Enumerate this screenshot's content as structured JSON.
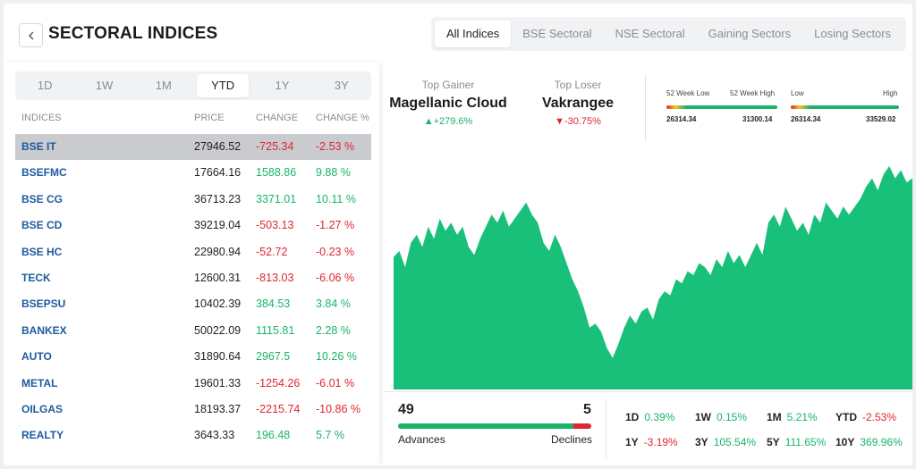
{
  "header": {
    "title": "SECTORAL INDICES"
  },
  "tabs": [
    "All Indices",
    "BSE Sectoral",
    "NSE Sectoral",
    "Gaining Sectors",
    "Losing Sectors"
  ],
  "periods": [
    "1D",
    "1W",
    "1M",
    "YTD",
    "1Y",
    "3Y"
  ],
  "table": {
    "headers": [
      "INDICES",
      "PRICE",
      "CHANGE",
      "CHANGE %"
    ],
    "rows": [
      {
        "name": "BSE IT",
        "price": "27946.52",
        "change": "-725.34",
        "pct": "-2.53 %"
      },
      {
        "name": "BSEFMC",
        "price": "17664.16",
        "change": "1588.86",
        "pct": "9.88 %"
      },
      {
        "name": "BSE CG",
        "price": "36713.23",
        "change": "3371.01",
        "pct": "10.11 %"
      },
      {
        "name": "BSE CD",
        "price": "39219.04",
        "change": "-503.13",
        "pct": "-1.27 %"
      },
      {
        "name": "BSE HC",
        "price": "22980.94",
        "change": "-52.72",
        "pct": "-0.23 %"
      },
      {
        "name": "TECK",
        "price": "12600.31",
        "change": "-813.03",
        "pct": "-6.06 %"
      },
      {
        "name": "BSEPSU",
        "price": "10402.39",
        "change": "384.53",
        "pct": "3.84 %"
      },
      {
        "name": "BANKEX",
        "price": "50022.09",
        "change": "1115.81",
        "pct": "2.28 %"
      },
      {
        "name": "AUTO",
        "price": "31890.64",
        "change": "2967.5",
        "pct": "10.26 %"
      },
      {
        "name": "METAL",
        "price": "19601.33",
        "change": "-1254.26",
        "pct": "-6.01 %"
      },
      {
        "name": "OILGAS",
        "price": "18193.37",
        "change": "-2215.74",
        "pct": "-10.86 %"
      },
      {
        "name": "REALTY",
        "price": "3643.33",
        "change": "196.48",
        "pct": "5.7 %"
      }
    ]
  },
  "movers": {
    "gainer_label": "Top Gainer",
    "gainer_name": "Magellanic Cloud",
    "gainer_change": "+279.6%",
    "loser_label": "Top Loser",
    "loser_name": "Vakrangee",
    "loser_change": "-30.75%"
  },
  "ranges": {
    "week52_low_label": "52 Week Low",
    "week52_high_label": "52 Week High",
    "week52_low": "26314.34",
    "week52_high": "31300.14",
    "low_label": "Low",
    "high_label": "High",
    "low": "26314.34",
    "high": "33529.02"
  },
  "colors": {
    "positive": "#19b46a",
    "negative": "#e0262f",
    "selected_row": "#c9cbcf"
  },
  "chart_data": {
    "type": "area",
    "values": [
      0.55,
      0.58,
      0.5,
      0.62,
      0.66,
      0.6,
      0.7,
      0.64,
      0.74,
      0.68,
      0.72,
      0.66,
      0.7,
      0.6,
      0.56,
      0.64,
      0.7,
      0.76,
      0.72,
      0.78,
      0.7,
      0.74,
      0.78,
      0.82,
      0.76,
      0.72,
      0.62,
      0.58,
      0.66,
      0.6,
      0.52,
      0.44,
      0.38,
      0.3,
      0.2,
      0.22,
      0.18,
      0.1,
      0.05,
      0.12,
      0.2,
      0.26,
      0.22,
      0.28,
      0.3,
      0.24,
      0.34,
      0.38,
      0.36,
      0.44,
      0.42,
      0.48,
      0.46,
      0.52,
      0.5,
      0.46,
      0.54,
      0.5,
      0.58,
      0.52,
      0.56,
      0.5,
      0.56,
      0.62,
      0.56,
      0.72,
      0.76,
      0.7,
      0.8,
      0.74,
      0.68,
      0.72,
      0.66,
      0.76,
      0.72,
      0.82,
      0.78,
      0.74,
      0.8,
      0.76,
      0.8,
      0.84,
      0.9,
      0.94,
      0.88,
      0.96,
      1.0,
      0.94,
      0.98,
      0.92,
      0.94
    ]
  },
  "breadth": {
    "advances": "49",
    "declines": "5",
    "advances_label": "Advances",
    "declines_label": "Declines",
    "advance_fraction": 0.907
  },
  "returns": [
    {
      "k": "1D",
      "v": "0.39%",
      "dir": "pos"
    },
    {
      "k": "1W",
      "v": "0.15%",
      "dir": "pos"
    },
    {
      "k": "1M",
      "v": "5.21%",
      "dir": "pos"
    },
    {
      "k": "YTD",
      "v": "-2.53%",
      "dir": "neg"
    },
    {
      "k": "1Y",
      "v": "-3.19%",
      "dir": "neg"
    },
    {
      "k": "3Y",
      "v": "105.54%",
      "dir": "pos"
    },
    {
      "k": "5Y",
      "v": "111.65%",
      "dir": "pos"
    },
    {
      "k": "10Y",
      "v": "369.96%",
      "dir": "pos"
    }
  ]
}
